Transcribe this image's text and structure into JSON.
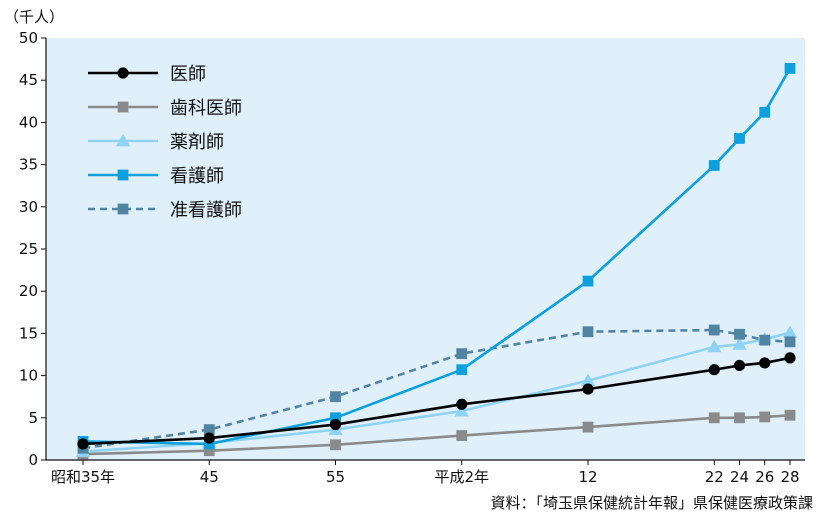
{
  "chart_data": {
    "type": "line",
    "y_unit": "（千人）",
    "source": "資料：「埼玉県保健統計年報」県保健医療政策課",
    "ylim": [
      0,
      50
    ],
    "y_ticks": [
      0,
      5,
      10,
      15,
      20,
      25,
      30,
      35,
      40,
      45,
      50
    ],
    "x_axis": "year",
    "x_ticks": [
      {
        "year": 1960,
        "label": "昭和35年"
      },
      {
        "year": 1970,
        "label": "45"
      },
      {
        "year": 1980,
        "label": "55"
      },
      {
        "year": 1990,
        "label": "平成2年"
      },
      {
        "year": 2000,
        "label": "12"
      },
      {
        "year": 2010,
        "label": "22"
      },
      {
        "year": 2012,
        "label": "24"
      },
      {
        "year": 2014,
        "label": "26"
      },
      {
        "year": 2016,
        "label": "28"
      }
    ],
    "x": [
      1960,
      1970,
      1980,
      1990,
      2000,
      2010,
      2012,
      2014,
      2016
    ],
    "grid": false,
    "legend_position": "top-left",
    "background": "#dff0fa",
    "series": [
      {
        "name": "医師",
        "color": "#000000",
        "marker": "circle",
        "dash": false,
        "values": [
          1.9,
          2.6,
          4.2,
          6.6,
          8.4,
          10.7,
          11.2,
          11.5,
          12.1
        ]
      },
      {
        "name": "歯科医師",
        "color": "#8a8a8a",
        "marker": "square",
        "dash": false,
        "values": [
          0.7,
          1.1,
          1.8,
          2.9,
          3.9,
          5.0,
          5.0,
          5.1,
          5.3
        ]
      },
      {
        "name": "薬剤師",
        "color": "#8fd3f4",
        "marker": "triangle",
        "dash": false,
        "values": [
          1.0,
          2.0,
          3.6,
          5.8,
          9.4,
          13.4,
          13.7,
          14.3,
          15.1
        ]
      },
      {
        "name": "看護師",
        "color": "#0ea0dc",
        "marker": "square",
        "dash": false,
        "values": [
          2.2,
          1.9,
          5.0,
          10.7,
          21.2,
          34.9,
          38.1,
          41.2,
          46.4
        ]
      },
      {
        "name": "准看護師",
        "color": "#4f84a3",
        "marker": "square",
        "dash": true,
        "values": [
          1.4,
          3.6,
          7.5,
          12.6,
          15.2,
          15.4,
          14.9,
          14.2,
          14.0
        ]
      }
    ]
  }
}
